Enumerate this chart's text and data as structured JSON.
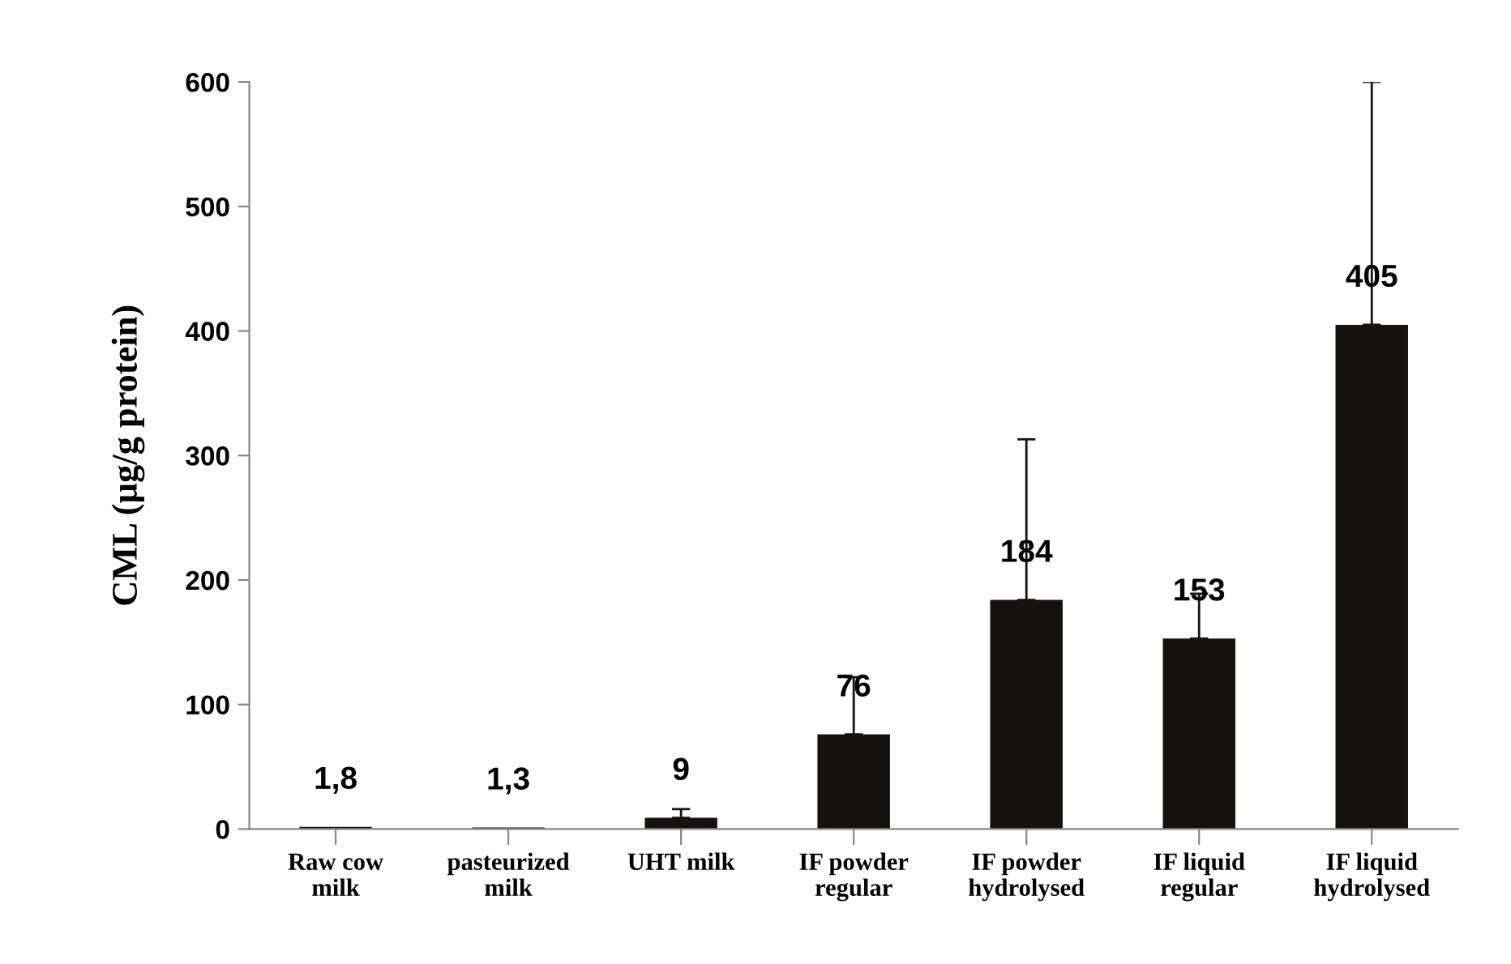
{
  "chart_data": {
    "type": "bar",
    "ylabel": "CML (µg/g protein)",
    "categories": [
      "Raw cow\nmilk",
      "pasteurized\nmilk",
      "UHT milk",
      "IF powder\nregular",
      "IF powder\nhydrolysed",
      "IF liquid\nregular",
      "IF liquid\nhydrolysed"
    ],
    "values": [
      1.8,
      1.3,
      9,
      76,
      184,
      153,
      405
    ],
    "value_labels": [
      "1,8",
      "1,3",
      "9",
      "76",
      "184",
      "153",
      "405"
    ],
    "errors": [
      null,
      null,
      [
        9,
        16
      ],
      [
        76,
        122
      ],
      [
        184,
        313
      ],
      [
        153,
        189
      ],
      [
        405,
        600
      ]
    ],
    "color": "#15130e",
    "ylim": [
      0,
      600
    ],
    "yticks": [
      0,
      100,
      200,
      300,
      400,
      500,
      600
    ],
    "grid": false
  }
}
